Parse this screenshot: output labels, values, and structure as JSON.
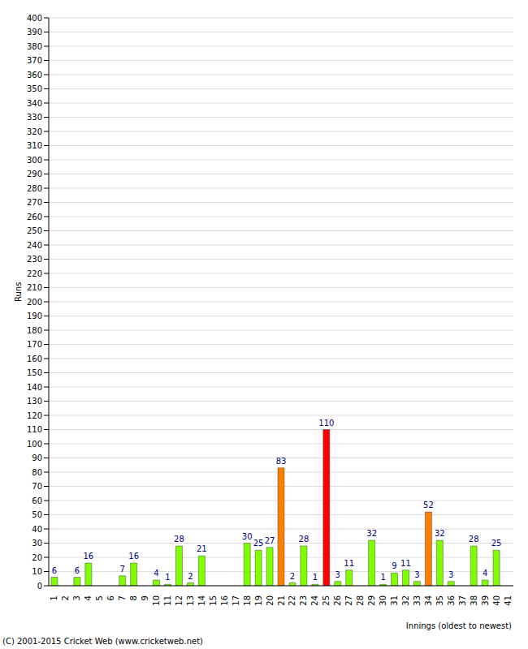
{
  "chart_data": {
    "type": "bar",
    "categories": [
      "1",
      "2",
      "3",
      "4",
      "5",
      "6",
      "7",
      "8",
      "9",
      "10",
      "11",
      "12",
      "13",
      "14",
      "15",
      "16",
      "17",
      "18",
      "19",
      "20",
      "21",
      "22",
      "23",
      "24",
      "25",
      "26",
      "27",
      "28",
      "29",
      "30",
      "31",
      "32",
      "33",
      "34",
      "35",
      "36",
      "37",
      "38",
      "39",
      "40",
      "41"
    ],
    "values": [
      6,
      0,
      6,
      16,
      0,
      0,
      7,
      16,
      0,
      4,
      1,
      28,
      2,
      21,
      0,
      0,
      0,
      30,
      25,
      27,
      83,
      2,
      28,
      1,
      110,
      3,
      11,
      0,
      32,
      1,
      9,
      11,
      3,
      52,
      32,
      3,
      0,
      28,
      4,
      25,
      0
    ],
    "colors": [
      "#7fff00",
      "#7fff00",
      "#7fff00",
      "#7fff00",
      "#7fff00",
      "#7fff00",
      "#7fff00",
      "#7fff00",
      "#7fff00",
      "#7fff00",
      "#7fff00",
      "#7fff00",
      "#7fff00",
      "#7fff00",
      "#7fff00",
      "#7fff00",
      "#7fff00",
      "#7fff00",
      "#7fff00",
      "#7fff00",
      "#ff8000",
      "#7fff00",
      "#7fff00",
      "#7fff00",
      "#ff0000",
      "#7fff00",
      "#7fff00",
      "#7fff00",
      "#7fff00",
      "#7fff00",
      "#7fff00",
      "#7fff00",
      "#7fff00",
      "#ff8000",
      "#7fff00",
      "#7fff00",
      "#7fff00",
      "#7fff00",
      "#7fff00",
      "#7fff00",
      "#7fff00"
    ],
    "ylim": [
      0,
      400
    ],
    "yticks": [
      0,
      10,
      20,
      30,
      40,
      50,
      60,
      70,
      80,
      90,
      100,
      110,
      120,
      130,
      140,
      150,
      160,
      170,
      180,
      190,
      200,
      210,
      220,
      230,
      240,
      250,
      260,
      270,
      280,
      290,
      300,
      310,
      320,
      330,
      340,
      350,
      360,
      370,
      380,
      390,
      400
    ],
    "grid": true,
    "data_labels": true,
    "y_label": "Runs",
    "x_label": "Innings (oldest to newest)",
    "annotations": [
      "(C) 2001-2015 Cricket Web (www.cricketweb.net)"
    ]
  }
}
